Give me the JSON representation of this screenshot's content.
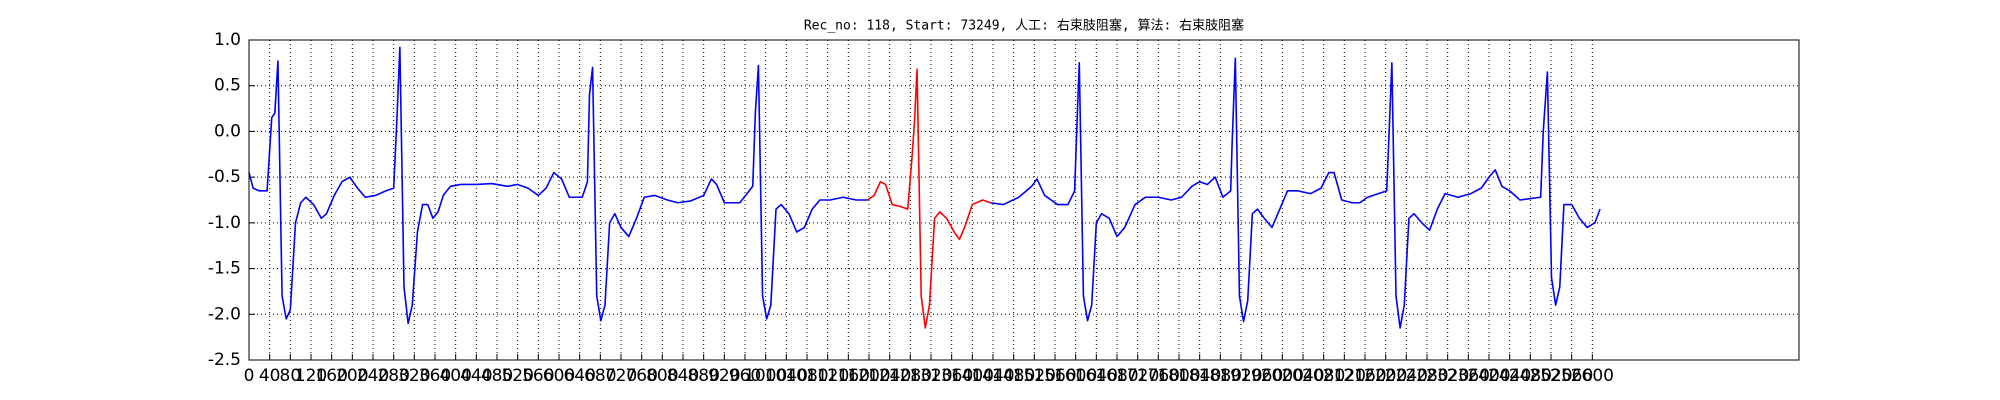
{
  "chart_data": {
    "type": "line",
    "title": "Rec_no: 118, Start: 73249, 人工: 右束肢阻塞, 算法: 右束肢阻塞",
    "xlim": [
      0,
      3000
    ],
    "xticks": [
      0,
      40,
      80,
      120,
      160,
      200,
      240,
      280,
      320,
      360,
      400,
      440,
      480,
      520,
      560,
      600,
      640,
      680,
      720,
      760,
      800,
      840,
      880,
      920,
      960,
      1000,
      1040,
      1080,
      1120,
      1160,
      1200,
      1240,
      1280,
      1320,
      1360,
      1400,
      1440,
      1480,
      1520,
      1560,
      1600,
      1640,
      1680,
      1720,
      1760,
      1800,
      1840,
      1880,
      1920,
      1960,
      2000,
      2040,
      2080,
      2120,
      2160,
      2200,
      2240,
      2280,
      2320,
      2360,
      2400,
      2440,
      2480,
      2520,
      2560,
      2600
    ],
    "ylim": [
      -2.5,
      1.0
    ],
    "yticks": [
      {
        "value": 1.0,
        "label": "1.0"
      },
      0.5,
      {
        "value": 0.0,
        "label": "0.0"
      },
      -0.5,
      {
        "value": -1.0,
        "label": "-1.0"
      },
      -1.5,
      {
        "value": -2.0,
        "label": "-2.0"
      },
      -2.5
    ],
    "grid": true,
    "series": [
      {
        "color": "#0000ff",
        "x": [
          0,
          8,
          20,
          35,
          44,
          50,
          56,
          64,
          72,
          80,
          90,
          100,
          110,
          125,
          140,
          150,
          165,
          180,
          195,
          210,
          225,
          245,
          265,
          280,
          286,
          292,
          300,
          308,
          316,
          326,
          336,
          346,
          356,
          366,
          376,
          390,
          410,
          440,
          470,
          500,
          520,
          540,
          560,
          575,
          590,
          605,
          620,
          645,
          655,
          659,
          665,
          673,
          681,
          689,
          698,
          708,
          720,
          735,
          750,
          765,
          785,
          810,
          830,
          855,
          880,
          895,
          905,
          920,
          950,
          975,
          980,
          986,
          994,
          1002,
          1010,
          1020,
          1030,
          1045,
          1060,
          1075,
          1090,
          1105,
          1125,
          1150,
          1175,
          1197
        ],
        "values": [
          -0.45,
          -0.62,
          -0.65,
          -0.65,
          0.15,
          0.2,
          0.77,
          -1.8,
          -2.05,
          -1.95,
          -1.0,
          -0.78,
          -0.72,
          -0.8,
          -0.95,
          -0.9,
          -0.7,
          -0.55,
          -0.5,
          -0.62,
          -0.72,
          -0.7,
          -0.65,
          -0.62,
          0.1,
          0.92,
          -1.7,
          -2.1,
          -1.9,
          -1.1,
          -0.8,
          -0.8,
          -0.95,
          -0.88,
          -0.7,
          -0.6,
          -0.58,
          -0.58,
          -0.57,
          -0.6,
          -0.58,
          -0.62,
          -0.7,
          -0.62,
          -0.45,
          -0.52,
          -0.72,
          -0.72,
          -0.55,
          0.4,
          0.7,
          -1.8,
          -2.07,
          -1.9,
          -1.0,
          -0.9,
          -1.05,
          -1.15,
          -0.95,
          -0.72,
          -0.7,
          -0.75,
          -0.78,
          -0.76,
          -0.7,
          -0.52,
          -0.58,
          -0.78,
          -0.78,
          -0.6,
          0.2,
          0.72,
          -1.8,
          -2.05,
          -1.9,
          -0.85,
          -0.8,
          -0.9,
          -1.1,
          -1.05,
          -0.85,
          -0.75,
          -0.75,
          -0.72,
          -0.75,
          -0.75
        ]
      },
      {
        "color": "#ff0000",
        "x": [
          1197,
          1210,
          1222,
          1232,
          1245,
          1260,
          1275,
          1283,
          1288,
          1293,
          1301,
          1309,
          1317,
          1327,
          1337,
          1350,
          1365,
          1375,
          1385,
          1400,
          1420,
          1435
        ],
        "values": [
          -0.75,
          -0.7,
          -0.55,
          -0.58,
          -0.8,
          -0.82,
          -0.85,
          -0.3,
          0.1,
          0.68,
          -1.8,
          -2.15,
          -1.9,
          -0.95,
          -0.88,
          -0.95,
          -1.1,
          -1.18,
          -1.05,
          -0.8,
          -0.75,
          -0.78
        ]
      },
      {
        "color": "#0000ff",
        "x": [
          1435,
          1460,
          1490,
          1515,
          1525,
          1540,
          1565,
          1585,
          1598,
          1602,
          1607,
          1615,
          1623,
          1631,
          1640,
          1650,
          1665,
          1680,
          1695,
          1715,
          1735,
          1760,
          1785,
          1805,
          1825,
          1840,
          1855,
          1870,
          1885,
          1900,
          1903,
          1909,
          1917,
          1925,
          1933,
          1942,
          1952,
          1965,
          1980,
          1995,
          2010,
          2030,
          2055,
          2075,
          2090,
          2100,
          2115,
          2135,
          2150,
          2165,
          2202,
          2206,
          2212,
          2220,
          2228,
          2236,
          2245,
          2255,
          2270,
          2285,
          2300,
          2315,
          2340,
          2365,
          2385,
          2400,
          2412,
          2425,
          2440,
          2460,
          2500,
          2505,
          2513,
          2521,
          2529,
          2537,
          2545,
          2560,
          2575,
          2590,
          2605,
          2615
        ],
        "values": [
          -0.78,
          -0.8,
          -0.72,
          -0.6,
          -0.52,
          -0.7,
          -0.8,
          -0.8,
          -0.65,
          0.0,
          0.75,
          -1.8,
          -2.07,
          -1.9,
          -1.0,
          -0.9,
          -0.95,
          -1.15,
          -1.05,
          -0.8,
          -0.72,
          -0.72,
          -0.75,
          -0.72,
          -0.6,
          -0.55,
          -0.58,
          -0.5,
          -0.72,
          -0.65,
          -0.1,
          0.8,
          -1.8,
          -2.08,
          -1.85,
          -0.9,
          -0.85,
          -0.95,
          -1.05,
          -0.85,
          -0.65,
          -0.65,
          -0.68,
          -0.62,
          -0.45,
          -0.45,
          -0.75,
          -0.78,
          -0.78,
          -0.72,
          -0.65,
          -0.1,
          0.75,
          -1.8,
          -2.15,
          -1.9,
          -0.95,
          -0.9,
          -1.0,
          -1.08,
          -0.85,
          -0.68,
          -0.72,
          -0.68,
          -0.62,
          -0.5,
          -0.42,
          -0.6,
          -0.65,
          -0.75,
          -0.72,
          0.0,
          0.65,
          -1.6,
          -1.9,
          -1.7,
          -0.8,
          -0.8,
          -0.95,
          -1.05,
          -1.0,
          -0.85
        ]
      }
    ]
  }
}
